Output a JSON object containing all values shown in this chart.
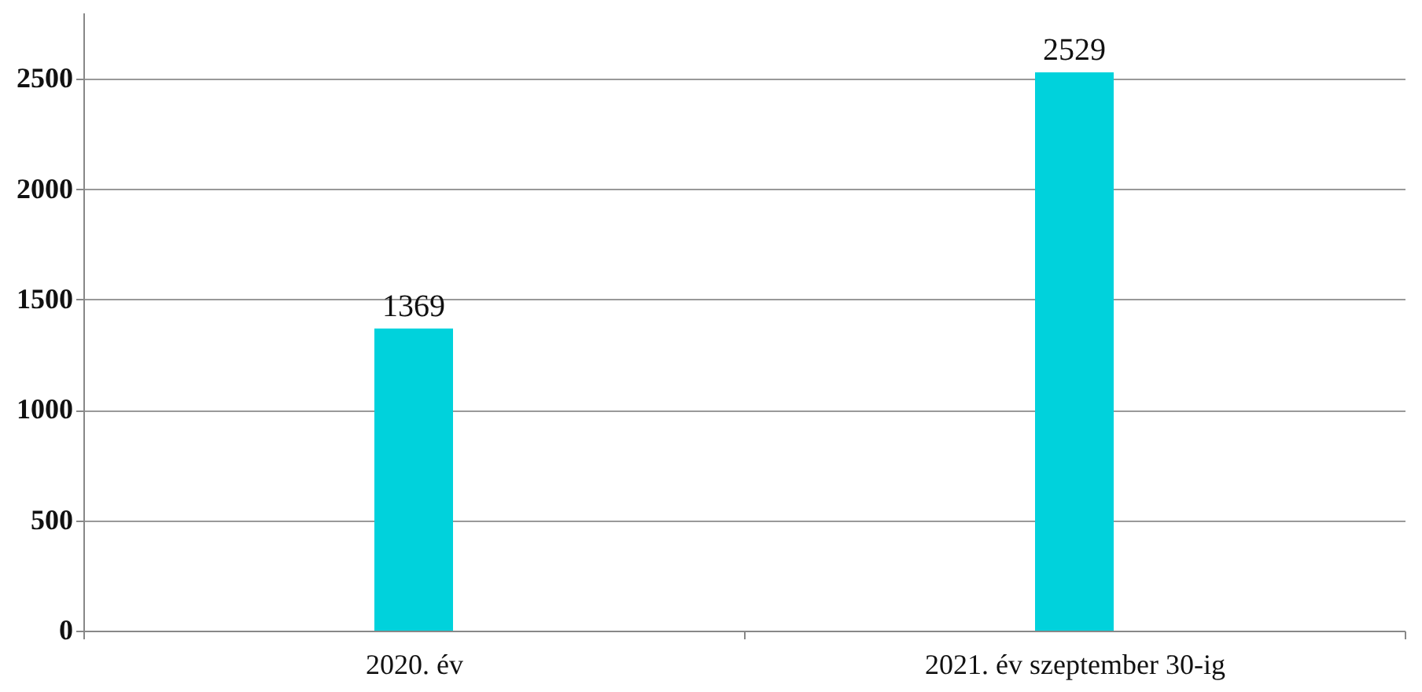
{
  "chart_data": {
    "type": "bar",
    "categories": [
      "2020. év",
      "2021. év szeptember 30-ig"
    ],
    "values": [
      1369,
      2529
    ],
    "color": "#00d2dc",
    "ylim": [
      0,
      2800
    ],
    "yticks": [
      0,
      500,
      1000,
      1500,
      2000,
      2500
    ],
    "grid": "y",
    "data_labels": true
  }
}
